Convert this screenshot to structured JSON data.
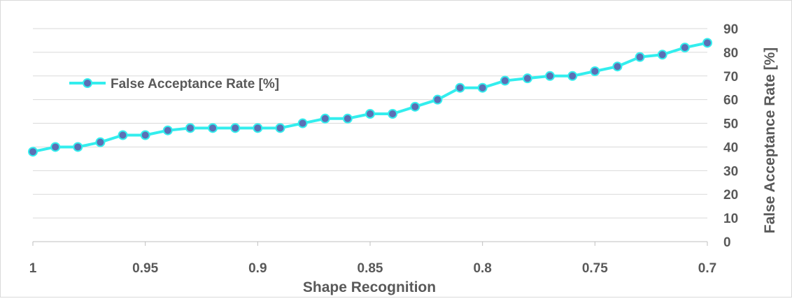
{
  "chart_data": {
    "type": "line",
    "x": [
      1,
      0.99,
      0.98,
      0.97,
      0.96,
      0.95,
      0.94,
      0.93,
      0.92,
      0.91,
      0.9,
      0.89,
      0.88,
      0.87,
      0.86,
      0.85,
      0.84,
      0.83,
      0.82,
      0.81,
      0.8,
      0.79,
      0.78,
      0.77,
      0.76,
      0.75,
      0.74,
      0.73,
      0.72,
      0.71,
      0.7
    ],
    "x_tick_labels": [
      "1",
      "0.95",
      "0.9",
      "0.85",
      "0.8",
      "0.75",
      "0.7"
    ],
    "xlabel": "Shape Recognition",
    "ylabel": "False Acceptance Rate [%]",
    "ylim": [
      0,
      90
    ],
    "y_ticks": [
      0,
      10,
      20,
      30,
      40,
      50,
      60,
      70,
      80,
      90
    ],
    "y_axis_side": "right",
    "x_axis": "reversed",
    "grid": true,
    "legend_position": "top-left",
    "series": [
      {
        "name": "False Acceptance Rate [%]",
        "color": "#33eeee",
        "marker_color": "#5b6fb5",
        "values": [
          38,
          40,
          40,
          42,
          45,
          45,
          47,
          48,
          48,
          48,
          48,
          48,
          50,
          52,
          52,
          54,
          54,
          57,
          60,
          65,
          65,
          68,
          69,
          70,
          70,
          72,
          74,
          78,
          79,
          82,
          84
        ]
      }
    ]
  }
}
